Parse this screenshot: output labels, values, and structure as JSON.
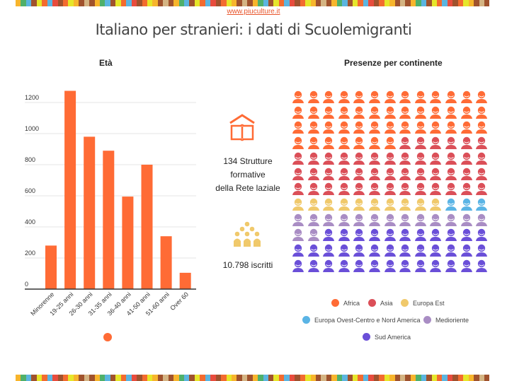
{
  "site": "www.piuculture.it",
  "title": "Italiano per stranieri: i dati di Scuolemigranti",
  "stripe_colors": [
    "#f7b52c",
    "#e84c3d",
    "#a0522d",
    "#e6e62a",
    "#5bb5e0",
    "#d4b483",
    "#f36b2f",
    "#4fb06a",
    "#a0522d",
    "#e6e62a"
  ],
  "middle": {
    "strutture_lines": [
      "134 Strutture",
      "formative",
      "della Rete laziale"
    ],
    "iscritti": "10.798 iscritti",
    "book_icon": "book-house-icon",
    "people_icon": "people-group-icon"
  },
  "chart_data": [
    {
      "type": "bar",
      "title": "Età",
      "categories": [
        "Minorenne",
        "19-25 anni",
        "26-30 anni",
        "31-35 anni",
        "36-40 anni",
        "41-50 anni",
        "51-60 anni",
        "Over 60"
      ],
      "values": [
        280,
        1275,
        980,
        890,
        595,
        800,
        340,
        105
      ],
      "yticks": [
        "0",
        "200",
        "400",
        "600",
        "800",
        "1000",
        "1200"
      ],
      "ylim": [
        0,
        1300
      ],
      "grid": true,
      "color": "#ff6b35",
      "legend": "bottom"
    },
    {
      "type": "pictogram",
      "title": "Presenze per continente",
      "columns": 13,
      "series": [
        {
          "name": "Africa",
          "value": 46,
          "color": "#ff6b35"
        },
        {
          "name": "Asia",
          "value": 45,
          "color": "#db4f58"
        },
        {
          "name": "Europa Est",
          "value": 10,
          "color": "#f0c96b"
        },
        {
          "name": "Europa Ovest-Centro e Nord America",
          "value": 3,
          "color": "#5ab4e5"
        },
        {
          "name": "Medioriente",
          "value": 15,
          "color": "#a98dc4"
        },
        {
          "name": "Sud America",
          "value": 37,
          "color": "#6a4fd8"
        }
      ],
      "legend": "bottom"
    }
  ]
}
